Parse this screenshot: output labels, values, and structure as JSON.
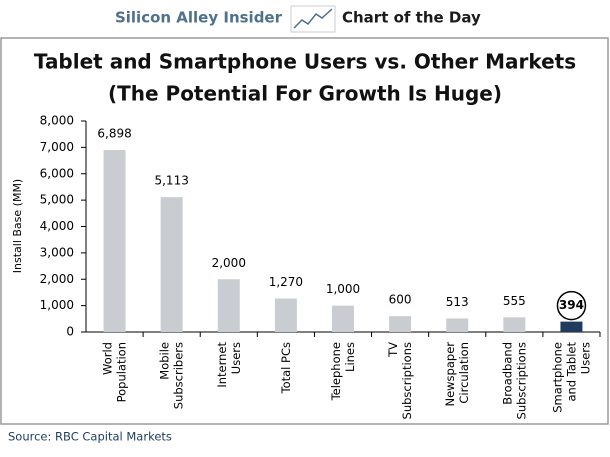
{
  "header": {
    "brand": "Silicon Alley Insider",
    "label": "Chart of the Day"
  },
  "chart_data": {
    "type": "bar",
    "title": "Tablet and Smartphone Users vs. Other Markets",
    "subtitle": "(The Potential For Growth Is Huge)",
    "y_label": "Install Base (MM)",
    "source": "Source: RBC Capital Markets",
    "categories": [
      "World\nPopulation",
      "Mobile\nSubscribers",
      "Internet\nUsers",
      "Total PCs",
      "Telephone\nLines",
      "TV\nSubscriptions",
      "Newspaper\nCirculation",
      "Broadband\nSubscriptions",
      "Smartphone\nand Tablet\nUsers"
    ],
    "values": [
      6898,
      5113,
      2000,
      1270,
      1000,
      600,
      513,
      555,
      394
    ],
    "value_labels": [
      "6,898",
      "5,113",
      "2,000",
      "1,270",
      "1,000",
      "600",
      "513",
      "555",
      "394"
    ],
    "colors": [
      "#c9ccd1",
      "#c9ccd1",
      "#c9ccd1",
      "#c9ccd1",
      "#c9ccd1",
      "#c9ccd1",
      "#c9ccd1",
      "#c9ccd1",
      "#1f3b5e"
    ],
    "highlight": 8,
    "ylim": [
      0,
      8000
    ],
    "yticks": [
      0,
      {
        "value": 1000,
        "label": "1,000"
      },
      {
        "value": 2000,
        "label": "2,000"
      },
      {
        "value": 3000,
        "label": "3,000"
      },
      {
        "value": 4000,
        "label": "4,000"
      },
      {
        "value": 5000,
        "label": "5,000"
      },
      {
        "value": 6000,
        "label": "6,000"
      },
      {
        "value": 7000,
        "label": "7,000"
      },
      {
        "value": 8000,
        "label": "8,000"
      }
    ],
    "grid": false
  }
}
